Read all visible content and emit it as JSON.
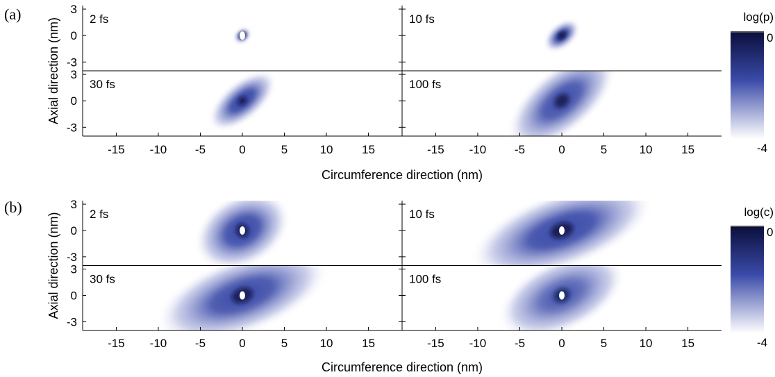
{
  "chart_data": [
    {
      "type": "heatmap",
      "panel_label": "(a)",
      "xlabel": "Circumference direction (nm)",
      "ylabel": "Axial direction (nm)",
      "xlim": [
        -19,
        19
      ],
      "ylim": [
        -4,
        3.4
      ],
      "xticks": [
        "-15",
        "-10",
        "-5",
        "0",
        "5",
        "10",
        "15"
      ],
      "yticks": [
        "3",
        "0",
        "-3"
      ],
      "colorbar": {
        "title": "log(p)",
        "max_label": "0",
        "min_label": "-4",
        "range": [
          -4,
          0
        ]
      },
      "subplots": [
        {
          "time": "2 fs",
          "peak_log": 0,
          "spread_circ_nm": 0.8,
          "spread_axial_nm": 0.55,
          "tilt_deg": 40,
          "hole": true
        },
        {
          "time": "10 fs",
          "peak_log": 0,
          "spread_circ_nm": 1.8,
          "spread_axial_nm": 1.0,
          "tilt_deg": 40,
          "hole": false
        },
        {
          "time": "30 fs",
          "peak_log": -0.6,
          "spread_circ_nm": 3.6,
          "spread_axial_nm": 1.6,
          "tilt_deg": 40,
          "hole": false
        },
        {
          "time": "100 fs",
          "peak_log": -1.2,
          "spread_circ_nm": 5.8,
          "spread_axial_nm": 2.6,
          "tilt_deg": 40,
          "hole": false
        }
      ]
    },
    {
      "type": "heatmap",
      "panel_label": "(b)",
      "xlabel": "Circumference direction (nm)",
      "ylabel": "Axial direction (nm)",
      "xlim": [
        -19,
        19
      ],
      "ylim": [
        -4,
        3.4
      ],
      "xticks": [
        "-15",
        "-10",
        "-5",
        "0",
        "5",
        "10",
        "15"
      ],
      "yticks": [
        "3",
        "0",
        "-3"
      ],
      "colorbar": {
        "title": "log(c)",
        "max_label": "0",
        "min_label": "-4",
        "range": [
          -4,
          0
        ]
      },
      "subplots": [
        {
          "time": "2 fs",
          "peak_log": -0.8,
          "spread_circ_nm": 4.5,
          "spread_axial_nm": 3.0,
          "tilt_deg": 30,
          "hole": true
        },
        {
          "time": "10 fs",
          "peak_log": -0.8,
          "spread_circ_nm": 8.5,
          "spread_axial_nm": 3.2,
          "tilt_deg": 20,
          "hole": true
        },
        {
          "time": "30 fs",
          "peak_log": -1.0,
          "spread_circ_nm": 8.0,
          "spread_axial_nm": 3.2,
          "tilt_deg": 20,
          "hole": true
        },
        {
          "time": "100 fs",
          "peak_log": -2.2,
          "spread_circ_nm": 6.0,
          "spread_axial_nm": 3.0,
          "tilt_deg": 25,
          "hole": true
        }
      ]
    }
  ],
  "colors": {
    "max": "#0a0f3c",
    "mid": "#3a4aa8",
    "min": "#ffffff"
  }
}
